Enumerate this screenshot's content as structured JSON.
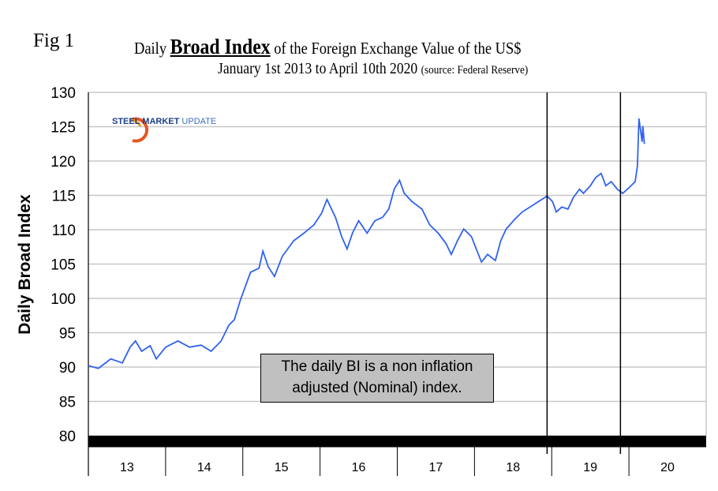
{
  "figure_label": "Fig 1",
  "logo_text": "STEEL MARKET UPDATE",
  "logo_parts": {
    "a": "STEEL MARKET",
    "b": "UPDATE"
  },
  "annotation": "The daily BI is a non inflation adjusted (Nominal) index.",
  "colors": {
    "line": "#2f62f0",
    "grid": "#c8c8c8",
    "note_bg": "#c0c0c0"
  },
  "chart_data": {
    "type": "line",
    "title_parts": {
      "pre": "Daily ",
      "bold": "Broad Index",
      "post": " of the Foreign Exchange Value of the US$"
    },
    "subtitle": "January 1st 2013 to April 10th 2020",
    "source": "(source: Federal Reserve)",
    "xlabel": "",
    "ylabel": "Daily Broad Index",
    "ylim": [
      80,
      130
    ],
    "yticks": [
      80,
      85,
      90,
      95,
      100,
      105,
      110,
      115,
      120,
      125,
      130
    ],
    "xlim": [
      2013,
      2021
    ],
    "xtick_labels": [
      "13",
      "14",
      "15",
      "16",
      "17",
      "18",
      "19",
      "20"
    ],
    "grid": true,
    "legend": "none",
    "vertical_markers": [
      2018.94,
      2019.89
    ],
    "series": [
      {
        "name": "Daily Broad Index",
        "x": [
          2013.0,
          2013.13,
          2013.29,
          2013.44,
          2013.54,
          2013.61,
          2013.69,
          2013.8,
          2013.88,
          2014.0,
          2014.16,
          2014.31,
          2014.46,
          2014.59,
          2014.72,
          2014.82,
          2014.89,
          2014.97,
          2015.1,
          2015.21,
          2015.26,
          2015.33,
          2015.41,
          2015.51,
          2015.66,
          2015.79,
          2015.92,
          2016.02,
          2016.09,
          2016.2,
          2016.28,
          2016.35,
          2016.42,
          2016.5,
          2016.61,
          2016.71,
          2016.81,
          2016.89,
          2016.96,
          2017.03,
          2017.09,
          2017.19,
          2017.32,
          2017.42,
          2017.53,
          2017.63,
          2017.7,
          2017.78,
          2017.86,
          2017.96,
          2018.04,
          2018.09,
          2018.17,
          2018.27,
          2018.34,
          2018.41,
          2018.52,
          2018.62,
          2018.72,
          2018.83,
          2018.94,
          2019.01,
          2019.06,
          2019.13,
          2019.21,
          2019.28,
          2019.36,
          2019.41,
          2019.5,
          2019.57,
          2019.64,
          2019.7,
          2019.77,
          2019.85,
          2019.92,
          2020.0,
          2020.08,
          2020.11,
          2020.13,
          2020.15,
          2020.17,
          2020.18,
          2020.2
        ],
        "y": [
          90.2,
          89.8,
          91.2,
          90.6,
          92.9,
          93.8,
          92.3,
          93.1,
          91.2,
          92.9,
          93.8,
          92.9,
          93.2,
          92.3,
          93.8,
          96.1,
          96.9,
          99.8,
          103.8,
          104.4,
          106.9,
          104.6,
          103.2,
          106.1,
          108.4,
          109.5,
          110.7,
          112.4,
          114.4,
          111.8,
          109.0,
          107.2,
          109.5,
          111.3,
          109.5,
          111.3,
          111.8,
          113.0,
          115.9,
          117.2,
          115.3,
          114.1,
          113.0,
          110.7,
          109.5,
          108.0,
          106.4,
          108.4,
          110.1,
          109.0,
          106.7,
          105.3,
          106.4,
          105.5,
          108.4,
          110.1,
          111.5,
          112.6,
          113.3,
          114.1,
          114.9,
          114.1,
          112.6,
          113.3,
          113.0,
          114.7,
          115.9,
          115.3,
          116.4,
          117.6,
          118.2,
          116.4,
          117.0,
          115.9,
          115.3,
          116.1,
          117.0,
          119.3,
          126.2,
          124.5,
          122.8,
          125.1,
          122.5
        ]
      }
    ]
  }
}
